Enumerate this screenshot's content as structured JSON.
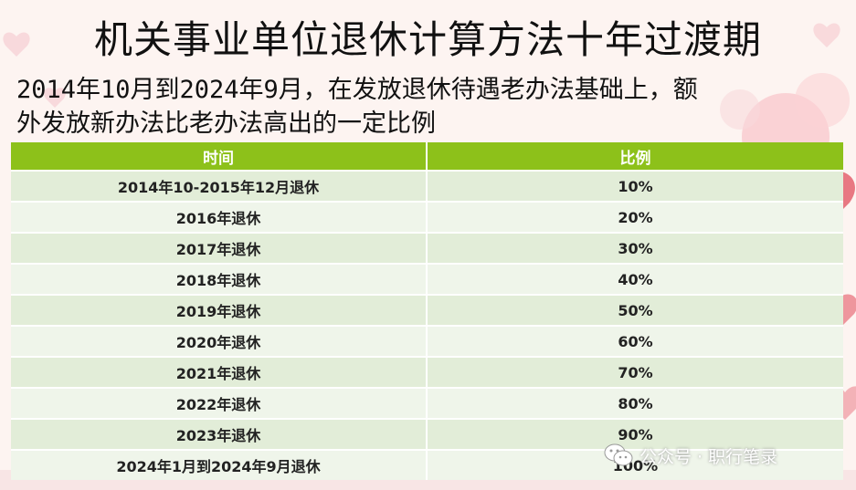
{
  "title": "机关事业单位退休计算方法十年过渡期",
  "subtitle": "2014年10月到2024年9月，在发放退休待遇老办法基础上，额\n外发放新办法比老办法高出的一定比例",
  "table": {
    "headers": [
      "时间",
      "比例"
    ],
    "rows": [
      {
        "time": "2014年10-2015年12月退休",
        "ratio": "10%"
      },
      {
        "time": "2016年退休",
        "ratio": "20%"
      },
      {
        "time": "2017年退休",
        "ratio": "30%"
      },
      {
        "time": "2018年退休",
        "ratio": "40%"
      },
      {
        "time": "2019年退休",
        "ratio": "50%"
      },
      {
        "time": "2020年退休",
        "ratio": "60%"
      },
      {
        "time": "2021年退休",
        "ratio": "70%"
      },
      {
        "time": "2022年退休",
        "ratio": "80%"
      },
      {
        "time": "2023年退休",
        "ratio": "90%"
      },
      {
        "time": "2024年1月到2024年9月退休",
        "ratio": "100%"
      }
    ]
  },
  "watermark": {
    "text": "公众号 · 职行笔录",
    "icon": "wechat-icon"
  },
  "colors": {
    "header_bg": "#8dc11a",
    "row_odd": "#e2edd8",
    "row_even": "#eff5ea"
  }
}
